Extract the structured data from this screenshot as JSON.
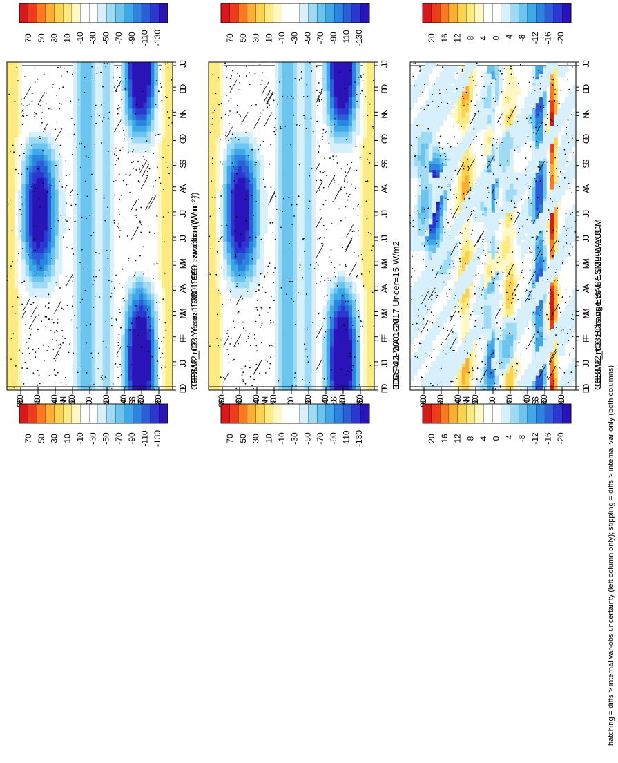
{
  "figure": {
    "caption": "hatching = diffs > internal var-obs uncertainty (left column only); stippling = diffs > internal var only (both columns)"
  },
  "chart_data": [
    {
      "type": "heatmap",
      "title": "CESM2_r03: Years 1980-1999 : swcftoa (W m⁻²)",
      "x_ticks": [
        "D",
        "J",
        "F",
        "M",
        "A",
        "M",
        "J",
        "J",
        "A",
        "S",
        "O",
        "N",
        "D",
        "J"
      ],
      "y_ticks": [
        "80",
        "60",
        "40",
        "20",
        "0",
        "20",
        "40",
        "60",
        "80"
      ],
      "y_axis_labels": [
        "N",
        "S"
      ],
      "colorbar": [
        "70",
        "50",
        "30",
        "10",
        "-10",
        "-30",
        "-50",
        "-70",
        "-90",
        "-110",
        "-130"
      ],
      "stippling": true,
      "hatching": true
    },
    {
      "type": "heatmap",
      "title": "EBAF4.1 2001-2017 Uncer=15 W/m2",
      "x_ticks": [
        "D",
        "J",
        "F",
        "M",
        "A",
        "M",
        "J",
        "J",
        "A",
        "S",
        "O",
        "N",
        "D",
        "J"
      ],
      "y_ticks": [
        "80",
        "60",
        "40",
        "20",
        "0",
        "20",
        "40",
        "60",
        "80"
      ],
      "y_axis_labels": [
        "N",
        "S"
      ],
      "colorbar": [
        "70",
        "50",
        "30",
        "10",
        "-10",
        "-30",
        "-50",
        "-70",
        "-90",
        "-110",
        "-130"
      ],
      "stippling": true,
      "hatching": true
    },
    {
      "type": "heatmap",
      "title": "CESM2_r03: Bias vs EBAF4.1 2001-2017",
      "x_ticks": [
        "D",
        "J",
        "F",
        "M",
        "A",
        "M",
        "J",
        "J",
        "A",
        "S",
        "O",
        "N",
        "D",
        "J"
      ],
      "y_ticks": [
        "80",
        "60",
        "40",
        "20",
        "0",
        "20",
        "40",
        "60",
        "80"
      ],
      "y_axis_labels": [
        "N",
        "S"
      ],
      "colorbar": [
        "20",
        "16",
        "12",
        "8",
        "4",
        "0",
        "-4",
        "-8",
        "-12",
        "-16",
        "-20"
      ],
      "stippling": true,
      "hatching": true
    },
    {
      "type": "heatmap",
      "title": "CESM2_r03: Years 1980-1999 : swcftoa (W m⁻²)",
      "x_ticks": [
        "D",
        "J",
        "F",
        "M",
        "A",
        "M",
        "J",
        "J",
        "A",
        "S",
        "O",
        "N",
        "D",
        "J"
      ],
      "y_ticks": [
        "80",
        "60",
        "40",
        "20",
        "0",
        "20",
        "40",
        "60",
        "80"
      ],
      "y_axis_labels": [
        "N",
        "S"
      ],
      "colorbar": [
        "70",
        "50",
        "30",
        "10",
        "-10",
        "-30",
        "-50",
        "-70",
        "-90",
        "-110",
        "-130"
      ],
      "stippling": true,
      "hatching": false
    },
    {
      "type": "heatmap",
      "title": "CESM2-WACCM",
      "x_ticks": [
        "D",
        "J",
        "F",
        "M",
        "A",
        "M",
        "J",
        "J",
        "A",
        "S",
        "O",
        "N",
        "D",
        "J"
      ],
      "y_ticks": [
        "80",
        "60",
        "40",
        "20",
        "0",
        "20",
        "40",
        "60",
        "80"
      ],
      "y_axis_labels": [
        "N",
        "S"
      ],
      "colorbar": [
        "70",
        "50",
        "30",
        "10",
        "-10",
        "-30",
        "-50",
        "-70",
        "-90",
        "-110",
        "-130"
      ],
      "stippling": true,
      "hatching": false
    },
    {
      "type": "heatmap",
      "title": "CESM2_r03: Change vs CESM2-WACCM",
      "x_ticks": [
        "D",
        "J",
        "F",
        "M",
        "A",
        "M",
        "J",
        "J",
        "A",
        "S",
        "O",
        "N",
        "D",
        "J"
      ],
      "y_ticks": [
        "80",
        "60",
        "40",
        "20",
        "0",
        "20",
        "40",
        "60",
        "80"
      ],
      "y_axis_labels": [
        "N",
        "S"
      ],
      "colorbar": [
        "20",
        "16",
        "12",
        "8",
        "4",
        "0",
        "-4",
        "-8",
        "-12",
        "-16",
        "-20"
      ],
      "stippling": true,
      "hatching": false
    }
  ]
}
